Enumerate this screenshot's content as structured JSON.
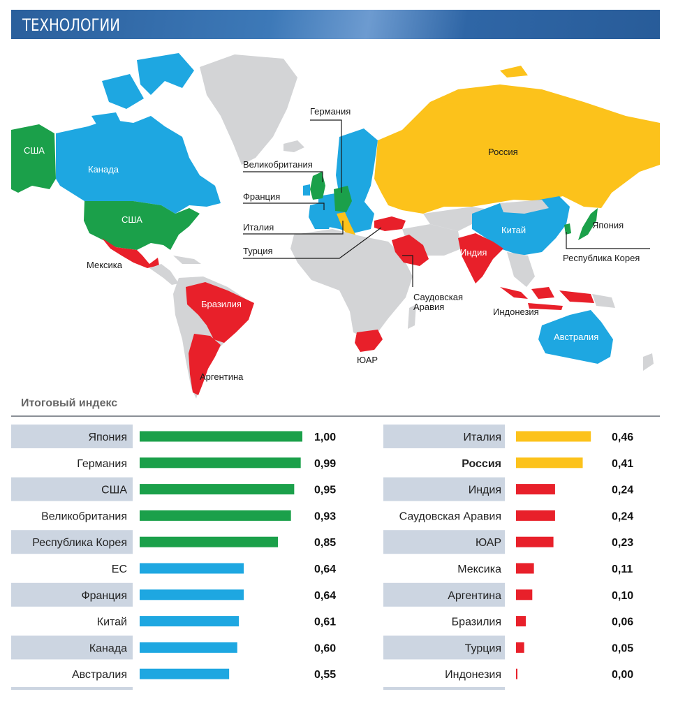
{
  "header": {
    "title": "ТЕХНОЛОГИИ"
  },
  "colors": {
    "green": "#1ba04a",
    "blue": "#1ea7e1",
    "yellow": "#fcc21b",
    "red": "#e8202a",
    "grey_land": "#d3d4d6",
    "row_band": "#ccd5e1"
  },
  "map": {
    "labels": {
      "usa_alaska": "США",
      "canada": "Канада",
      "usa": "США",
      "mexico": "Мексика",
      "brazil": "Бразилия",
      "argentina": "Аргентина",
      "germany": "Германия",
      "uk": "Великобритания",
      "france": "Франция",
      "italy": "Италия",
      "turkey": "Турция",
      "russia": "Россия",
      "japan": "Япония",
      "china": "Китай",
      "korea": "Республика Корея",
      "india": "Индия",
      "saudi_line1": "Саудовская",
      "saudi_line2": "Аравия",
      "indonesia": "Индонезия",
      "australia": "Австралия",
      "south_africa": "ЮАР"
    }
  },
  "chart_data": {
    "type": "bar",
    "title": "Итоговый индекс",
    "xlim": [
      0,
      1
    ],
    "series": [
      {
        "values": [
          1.0,
          0.99,
          0.95,
          0.93,
          0.85,
          0.64,
          0.64,
          0.61,
          0.6,
          0.55,
          0.46,
          0.41,
          0.24,
          0.24,
          0.23,
          0.11,
          0.1,
          0.06,
          0.05,
          0.0
        ]
      }
    ],
    "categories": [
      "Япония",
      "Германия",
      "США",
      "Великобритания",
      "Республика Корея",
      "ЕС",
      "Франция",
      "Китай",
      "Канада",
      "Австралия",
      "Италия",
      "Россия",
      "Индия",
      "Саудовская Аравия",
      "ЮАР",
      "Мексика",
      "Аргентина",
      "Бразилия",
      "Турция",
      "Индонезия"
    ],
    "value_labels": [
      "1,00",
      "0,99",
      "0,95",
      "0,93",
      "0,85",
      "0,64",
      "0,64",
      "0,61",
      "0,60",
      "0,55",
      "0,46",
      "0,41",
      "0,24",
      "0,24",
      "0,23",
      "0,11",
      "0,10",
      "0,06",
      "0,05",
      "0,00"
    ],
    "bar_colors": [
      "green",
      "green",
      "green",
      "green",
      "green",
      "blue",
      "blue",
      "blue",
      "blue",
      "blue",
      "yellow",
      "yellow",
      "red",
      "red",
      "red",
      "red",
      "red",
      "red",
      "red",
      "red"
    ],
    "bold_categories": [
      "Россия"
    ],
    "columns": 2
  }
}
